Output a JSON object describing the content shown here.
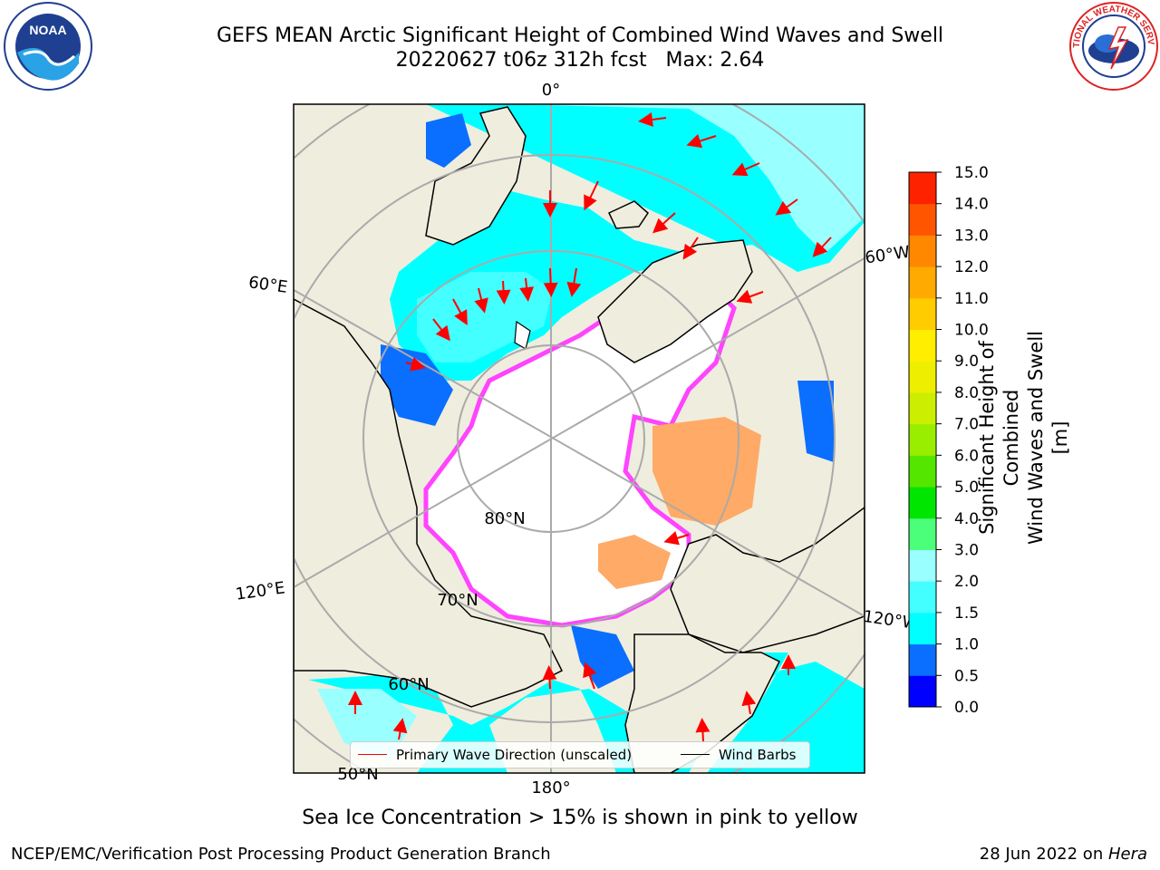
{
  "header": {
    "title_line1": "GEFS MEAN Arctic Significant Height of Combined Wind Waves and Swell",
    "title_line2": "20220627 t06z 312h fcst   Max: 2.64"
  },
  "logos": {
    "left": "NOAA",
    "right": "NATIONAL WEATHER SERVICE"
  },
  "map": {
    "projection": "north-polar-stereographic",
    "longitude_labels": [
      "0°",
      "60°E",
      "120°E",
      "180°",
      "120°W",
      "60°W"
    ],
    "latitude_labels": [
      "80°N",
      "70°N",
      "60°N",
      "50°N"
    ],
    "colors": {
      "land": "#efedde",
      "ocean_ice_free_low": "#00ffff",
      "ice_region": "#ffffff",
      "sea_ice_edge": "#ff44ff",
      "gridline": "#aaaaaa",
      "coast": "#000000"
    }
  },
  "legend": {
    "wave_direction": "Primary Wave Direction (unscaled)",
    "wind_barbs": "Wind Barbs",
    "wave_direction_color": "#ff0000",
    "wind_barbs_color": "#000000"
  },
  "colorbar": {
    "title_line1": "Significant Height of Combined",
    "title_line2": "Wind Waves and Swell [m]",
    "ticks": [
      "0.0",
      "0.5",
      "1.0",
      "1.5",
      "2.0",
      "3.0",
      "4.0",
      "5.0",
      "6.0",
      "7.0",
      "8.0",
      "9.0",
      "10.0",
      "11.0",
      "12.0",
      "13.0",
      "14.0",
      "15.0"
    ],
    "colors": [
      "#0000ff",
      "#0a6eff",
      "#00ffff",
      "#44ffff",
      "#99ffff",
      "#4cff7a",
      "#00e600",
      "#55e600",
      "#99ee00",
      "#ccee00",
      "#eeee00",
      "#ffee00",
      "#ffcc00",
      "#ffaa00",
      "#ff8800",
      "#ff5500",
      "#ff2200"
    ]
  },
  "note": "Sea Ice Concentration > 15% is shown in pink to yellow",
  "footer": {
    "left": "NCEP/EMC/Verification Post Processing Product Generation Branch",
    "right_date": "28 Jun 2022 on ",
    "right_host": "Hera"
  }
}
